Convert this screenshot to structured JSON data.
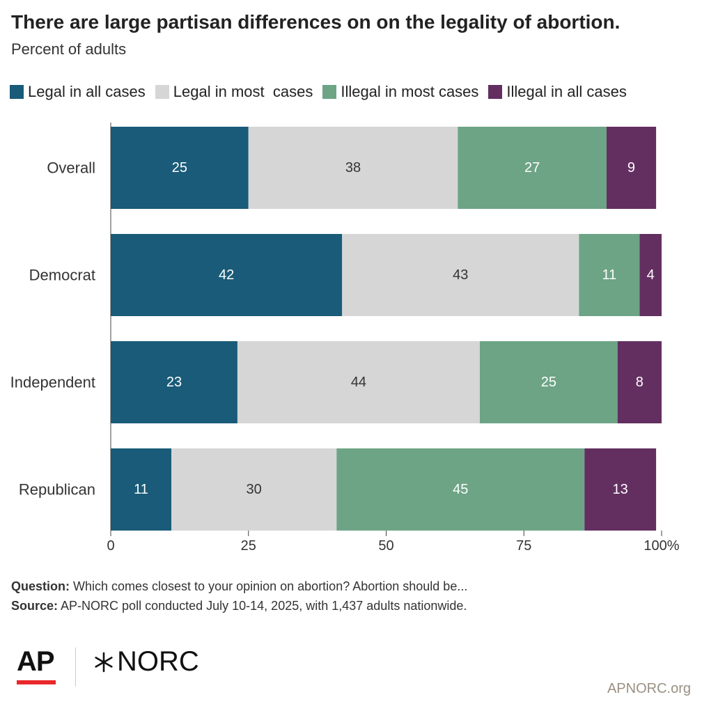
{
  "header": {
    "title": "There are large partisan differences on on the legality of abortion.",
    "subtitle": "Percent of adults"
  },
  "colors": {
    "legal_all": "#195b78",
    "legal_most": "#d6d6d6",
    "illegal_most": "#6da486",
    "illegal_all": "#632f60"
  },
  "chart_data": {
    "type": "bar",
    "orientation": "horizontal",
    "stacked": true,
    "categories": [
      "Overall",
      "Democrat",
      "Independent",
      "Republican"
    ],
    "series": [
      {
        "name": "Legal in all cases",
        "color_key": "legal_all",
        "values": [
          25,
          42,
          23,
          11
        ],
        "label_color": "#ffffff"
      },
      {
        "name": "Legal in most  cases",
        "color_key": "legal_most",
        "values": [
          38,
          43,
          44,
          30
        ],
        "label_color": "#333333"
      },
      {
        "name": "Illegal in most cases",
        "color_key": "illegal_most",
        "values": [
          27,
          11,
          25,
          45
        ],
        "label_color": "#ffffff"
      },
      {
        "name": "Illegal in all cases",
        "color_key": "illegal_all",
        "values": [
          9,
          4,
          8,
          13
        ],
        "label_color": "#ffffff"
      }
    ],
    "xlim": [
      0,
      100
    ],
    "x_ticks": [
      0,
      25,
      50,
      75,
      100
    ],
    "x_tick_labels": [
      "0",
      "25",
      "50",
      "75",
      "100%"
    ],
    "legend_position": "top-left",
    "grid": false
  },
  "notes": {
    "question_label": "Question:",
    "question_text": " Which comes closest to your opinion on abortion? Abortion should be...",
    "source_label": "Source:",
    "source_text": " AP-NORC poll conducted July 10-14, 2025, with 1,437 adults nationwide."
  },
  "footer": {
    "ap_logo": "AP",
    "norc_logo": "NORC",
    "website": "APNORC.org"
  }
}
